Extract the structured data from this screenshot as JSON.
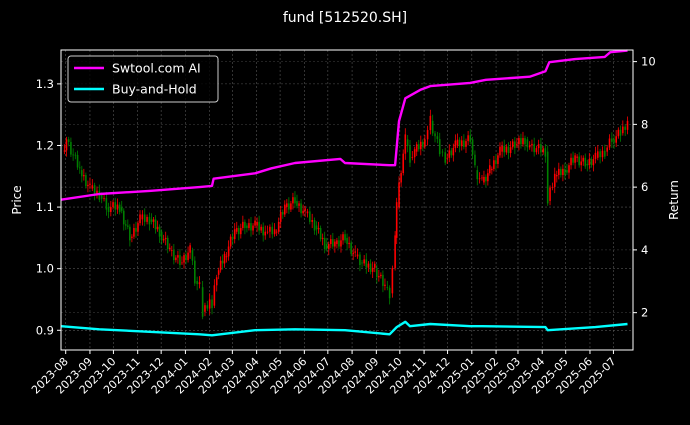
{
  "chart_data": {
    "type": "candlestick+line",
    "title": "fund [512520.SH]",
    "ylabel_left": "Price",
    "ylabel_right": "Return",
    "ylim_left": [
      0.868,
      1.355
    ],
    "ylim_right": [
      0.81,
      10.37
    ],
    "xlim": [
      "2023-07-26",
      "2025-07-26"
    ],
    "grid": true,
    "legend_placement": "top-left",
    "yticks_left": [
      "0.9",
      "1.0",
      "1.1",
      "1.2",
      "1.3"
    ],
    "yticks_right": [
      "2",
      "4",
      "6",
      "8",
      "10"
    ],
    "xticks": [
      "2023-08",
      "2023-09",
      "2023-10",
      "2023-11",
      "2023-12",
      "2024-01",
      "2024-02",
      "2024-03",
      "2024-04",
      "2024-05",
      "2024-06",
      "2024-07",
      "2024-08",
      "2024-09",
      "2024-10",
      "2024-11",
      "2024-12",
      "2025-01",
      "2025-02",
      "2025-03",
      "2025-04",
      "2025-05",
      "2025-06",
      "2025-07"
    ],
    "colors": {
      "up": "#ff0000",
      "down": "#008000",
      "strategy": "#ff00ff",
      "buy_hold": "#00ffff",
      "background": "#000000"
    },
    "price": {
      "dates": [
        "2023-07-28",
        "2023-08-02",
        "2023-08-19",
        "2023-09-01",
        "2023-09-13",
        "2023-09-22",
        "2023-10-09",
        "2023-10-22",
        "2023-11-04",
        "2023-11-16",
        "2023-11-29",
        "2023-12-12",
        "2023-12-25",
        "2024-01-07",
        "2024-01-13",
        "2024-01-19",
        "2024-01-23",
        "2024-02-01",
        "2024-02-04",
        "2024-02-10",
        "2024-02-20",
        "2024-03-04",
        "2024-03-17",
        "2024-03-30",
        "2024-04-12",
        "2024-04-24",
        "2024-05-07",
        "2024-05-20",
        "2024-06-02",
        "2024-06-14",
        "2024-06-27",
        "2024-07-10",
        "2024-07-23",
        "2024-08-05",
        "2024-08-11",
        "2024-08-30",
        "2024-09-12",
        "2024-09-18",
        "2024-09-25",
        "2024-09-27",
        "2024-09-30",
        "2024-10-08",
        "2024-10-14",
        "2024-10-20",
        "2024-11-02",
        "2024-11-09",
        "2024-11-21",
        "2024-11-28",
        "2024-12-11",
        "2024-12-30",
        "2025-01-05",
        "2025-01-14",
        "2025-01-24",
        "2025-02-06",
        "2025-02-25",
        "2025-03-10",
        "2025-03-16",
        "2025-04-05",
        "2025-04-08",
        "2025-04-17",
        "2025-04-30",
        "2025-05-13",
        "2025-05-26",
        "2025-06-08",
        "2025-06-20",
        "2025-06-29",
        "2025-07-10",
        "2025-07-19"
      ],
      "close": [
        1.19,
        1.21,
        1.16,
        1.13,
        1.12,
        1.1,
        1.1,
        1.05,
        1.08,
        1.08,
        1.06,
        1.03,
        1.01,
        1.03,
        0.98,
        0.97,
        0.93,
        0.95,
        0.94,
        0.99,
        1.02,
        1.06,
        1.07,
        1.07,
        1.06,
        1.06,
        1.1,
        1.11,
        1.09,
        1.07,
        1.04,
        1.04,
        1.05,
        1.02,
        1.01,
        1.0,
        0.97,
        0.96,
        1.05,
        1.1,
        1.14,
        1.21,
        1.18,
        1.19,
        1.21,
        1.24,
        1.19,
        1.18,
        1.2,
        1.21,
        1.16,
        1.14,
        1.16,
        1.19,
        1.2,
        1.21,
        1.2,
        1.19,
        1.11,
        1.15,
        1.16,
        1.18,
        1.17,
        1.18,
        1.19,
        1.21,
        1.22,
        1.24
      ]
    },
    "series": [
      {
        "name": "Swtool.com AI",
        "axis": "right",
        "dates": [
          "2023-07-26",
          "2023-09-13",
          "2023-11-16",
          "2024-01-19",
          "2024-02-04",
          "2024-02-06",
          "2024-03-30",
          "2024-04-20",
          "2024-05-20",
          "2024-07-17",
          "2024-07-23",
          "2024-09-18",
          "2024-09-25",
          "2024-09-30",
          "2024-10-08",
          "2024-10-27",
          "2024-11-09",
          "2024-12-30",
          "2025-01-19",
          "2025-03-16",
          "2025-04-05",
          "2025-04-10",
          "2025-05-13",
          "2025-06-20",
          "2025-06-27",
          "2025-07-19"
        ],
        "values": [
          5.6,
          5.78,
          5.88,
          6.0,
          6.04,
          6.27,
          6.44,
          6.6,
          6.77,
          6.9,
          6.77,
          6.7,
          6.7,
          8.1,
          8.83,
          9.1,
          9.22,
          9.32,
          9.42,
          9.52,
          9.69,
          9.98,
          10.08,
          10.15,
          10.3,
          10.35
        ]
      },
      {
        "name": "Buy-and-Hold",
        "axis": "right",
        "dates": [
          "2023-07-26",
          "2023-09-13",
          "2024-01-19",
          "2024-02-04",
          "2024-03-30",
          "2024-05-20",
          "2024-07-23",
          "2024-09-18",
          "2024-09-27",
          "2024-10-08",
          "2024-10-14",
          "2024-11-09",
          "2024-12-30",
          "2025-01-14",
          "2025-04-05",
          "2025-04-08",
          "2025-06-08",
          "2025-07-19"
        ],
        "values": [
          1.57,
          1.47,
          1.31,
          1.28,
          1.44,
          1.47,
          1.44,
          1.31,
          1.54,
          1.71,
          1.57,
          1.64,
          1.57,
          1.57,
          1.54,
          1.44,
          1.54,
          1.64
        ]
      }
    ]
  }
}
